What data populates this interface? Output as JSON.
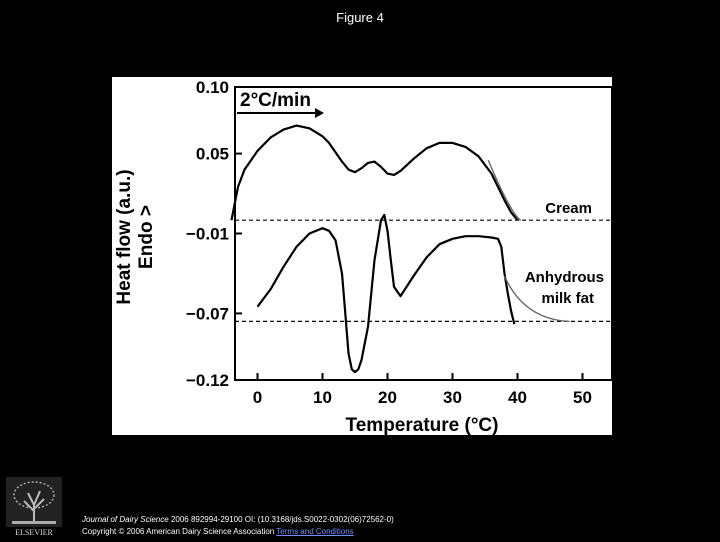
{
  "slide": {
    "title": "Figure 4"
  },
  "chart_data": {
    "type": "line",
    "title": "",
    "xlabel": "Temperature (°C)",
    "ylabel": "Heat flow (a.u.)",
    "ylabel2": "Endo >",
    "xlim": [
      -5,
      52
    ],
    "ylim": [
      -0.12,
      0.1
    ],
    "x_ticks": [
      "0",
      "10",
      "20",
      "30",
      "40",
      "50"
    ],
    "x_tick_values": [
      0,
      10,
      20,
      30,
      40,
      50
    ],
    "y_ticks": [
      "0.10",
      "0.05",
      "−0.01",
      "−0.07",
      "−0.12"
    ],
    "y_tick_values": [
      0.1,
      0.05,
      -0.01,
      -0.07,
      -0.12
    ],
    "annotation": "2°C/min",
    "grid": false,
    "series": [
      {
        "name": "Cream",
        "x": [
          -4,
          -3,
          -2,
          0,
          2,
          4,
          6,
          8,
          10,
          11,
          12,
          13,
          14,
          15,
          16,
          17,
          18,
          19,
          20,
          21,
          22,
          24,
          26,
          28,
          30,
          32,
          34,
          36,
          37,
          38,
          39,
          40
        ],
        "y": [
          0.0,
          0.025,
          0.038,
          0.052,
          0.062,
          0.068,
          0.071,
          0.069,
          0.063,
          0.058,
          0.051,
          0.044,
          0.038,
          0.036,
          0.039,
          0.043,
          0.044,
          0.04,
          0.035,
          0.034,
          0.037,
          0.046,
          0.054,
          0.058,
          0.058,
          0.055,
          0.048,
          0.035,
          0.025,
          0.015,
          0.006,
          0.0
        ],
        "baseline": 0.0,
        "baseline_style": "dashed"
      },
      {
        "name": "Anhydrous milk fat",
        "x": [
          0,
          2,
          4,
          6,
          8,
          10,
          11,
          12,
          13,
          13.5,
          14,
          14.5,
          15,
          15.5,
          16,
          17,
          18,
          19,
          19.5,
          20,
          20.5,
          21,
          22,
          24,
          26,
          28,
          30,
          32,
          34,
          36,
          37,
          37.5,
          38,
          38.5,
          39,
          39.5
        ],
        "y": [
          -0.065,
          -0.052,
          -0.035,
          -0.02,
          -0.01,
          -0.006,
          -0.008,
          -0.015,
          -0.04,
          -0.07,
          -0.1,
          -0.112,
          -0.114,
          -0.112,
          -0.105,
          -0.08,
          -0.03,
          0.0,
          0.004,
          -0.008,
          -0.03,
          -0.05,
          -0.057,
          -0.042,
          -0.028,
          -0.018,
          -0.014,
          -0.012,
          -0.012,
          -0.013,
          -0.014,
          -0.02,
          -0.04,
          -0.055,
          -0.068,
          -0.078
        ],
        "baseline": -0.076,
        "baseline_style": "dashed"
      }
    ]
  },
  "footer": {
    "journal": "Journal of Dairy Science",
    "citation": " 2006 892994-29100 OI: (10.3168/jds.S0022-0302(06)72562-0)",
    "copyright": "Copyright © 2006 American Dairy Science Association",
    "link": "Terms and Conditions"
  },
  "logo": {
    "alt": "ELSEVIER"
  }
}
